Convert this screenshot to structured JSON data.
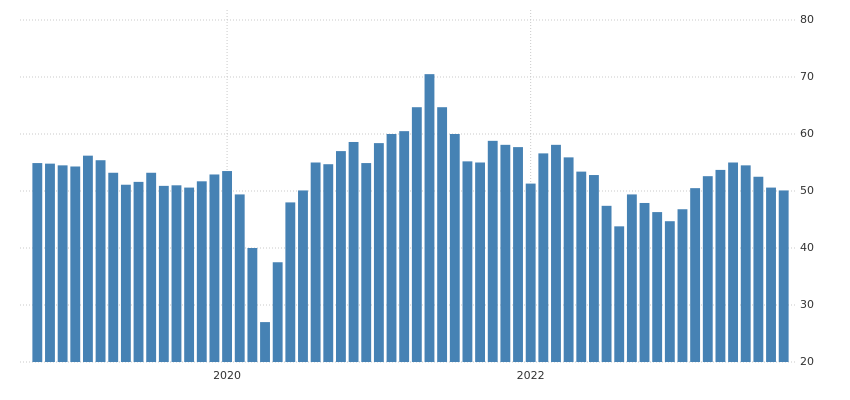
{
  "chart_data": {
    "type": "bar",
    "categories": [
      null,
      null,
      null,
      null,
      null,
      null,
      null,
      null,
      null,
      null,
      null,
      null,
      null,
      null,
      null,
      "2020",
      null,
      null,
      null,
      null,
      null,
      null,
      null,
      null,
      null,
      null,
      null,
      null,
      null,
      null,
      null,
      null,
      null,
      null,
      null,
      null,
      null,
      null,
      null,
      "2022",
      null,
      null,
      null,
      null,
      null,
      null,
      null,
      null,
      null,
      null,
      null,
      null,
      null,
      null,
      null,
      null,
      null,
      null,
      null,
      null
    ],
    "values": [
      54.9,
      54.8,
      54.5,
      54.3,
      56.2,
      55.4,
      53.2,
      51.1,
      51.6,
      53.2,
      50.9,
      51.0,
      50.6,
      51.7,
      52.9,
      53.5,
      49.4,
      40.0,
      27.0,
      37.5,
      48.0,
      50.1,
      55.0,
      54.7,
      57.0,
      58.6,
      54.9,
      58.4,
      60.0,
      60.5,
      64.7,
      70.5,
      64.7,
      60.0,
      55.2,
      55.0,
      58.8,
      58.1,
      57.7,
      51.3,
      56.6,
      58.1,
      55.9,
      53.4,
      52.8,
      47.4,
      43.8,
      49.4,
      47.9,
      46.3,
      44.7,
      46.8,
      50.5,
      52.6,
      53.7,
      55.0,
      54.5,
      52.5,
      50.6,
      50.1
    ],
    "color": "#4682b4",
    "ylim": [
      20,
      80
    ],
    "yticks": [
      20,
      30,
      40,
      50,
      60,
      70,
      80
    ],
    "grid": true
  }
}
